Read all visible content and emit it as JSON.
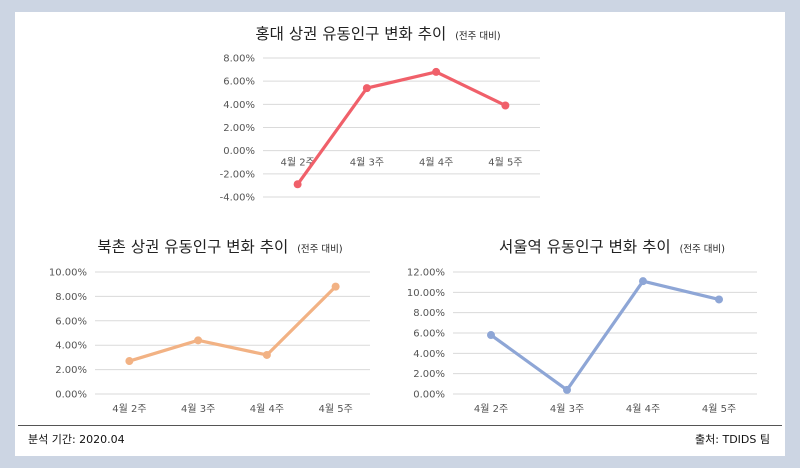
{
  "charts": [
    {
      "id": "hongdae",
      "title": "홍대 상권 유동인구 변화 추이",
      "subtitle": "(전주 대비)"
    },
    {
      "id": "bukchon",
      "title": "북촌 상권 유동인구 변화 추이",
      "subtitle": "(전주 대비)"
    },
    {
      "id": "seoul",
      "title": "서울역 유동인구 변화 추이",
      "subtitle": "(전주 대비)"
    }
  ],
  "footer": {
    "period": "분석 기간: 2020.04",
    "source": "출처: TDIDS 팀"
  },
  "chart_data": [
    {
      "type": "line",
      "title": "홍대 상권 유동인구 변화 추이",
      "subtitle": "(전주 대비)",
      "categories": [
        "4월 2주",
        "4월 3주",
        "4월 4주",
        "4월 5주"
      ],
      "series": [
        {
          "values": [
            -2.9,
            5.4,
            6.8,
            3.9
          ],
          "color": "#f0606a"
        }
      ],
      "ylim": [
        -4,
        8
      ],
      "yticks": [
        -4,
        -2,
        0,
        2,
        4,
        6,
        8
      ],
      "ytick_labels": [
        "-4.00%",
        "-2.00%",
        "0.00%",
        "2.00%",
        "4.00%",
        "6.00%",
        "8.00%"
      ],
      "grid": true,
      "legend": "none"
    },
    {
      "type": "line",
      "title": "북촌 상권 유동인구 변화 추이",
      "subtitle": "(전주 대비)",
      "categories": [
        "4월 2주",
        "4월 3주",
        "4월 4주",
        "4월 5주"
      ],
      "series": [
        {
          "values": [
            2.7,
            4.4,
            3.2,
            8.8
          ],
          "color": "#f2b284"
        }
      ],
      "ylim": [
        0,
        10
      ],
      "yticks": [
        0,
        2,
        4,
        6,
        8,
        10
      ],
      "ytick_labels": [
        "0.00%",
        "2.00%",
        "4.00%",
        "6.00%",
        "8.00%",
        "10.00%"
      ],
      "grid": true,
      "legend": "none"
    },
    {
      "type": "line",
      "title": "서울역 유동인구 변화 추이",
      "subtitle": "(전주 대비)",
      "categories": [
        "4월 2주",
        "4월 3주",
        "4월 4주",
        "4월 5주"
      ],
      "series": [
        {
          "values": [
            5.8,
            0.4,
            11.1,
            9.3
          ],
          "color": "#8ea6d6"
        }
      ],
      "ylim": [
        0,
        12
      ],
      "yticks": [
        0,
        2,
        4,
        6,
        8,
        10,
        12
      ],
      "ytick_labels": [
        "0.00%",
        "2.00%",
        "4.00%",
        "6.00%",
        "8.00%",
        "10.00%",
        "12.00%"
      ],
      "grid": true,
      "legend": "none"
    }
  ]
}
